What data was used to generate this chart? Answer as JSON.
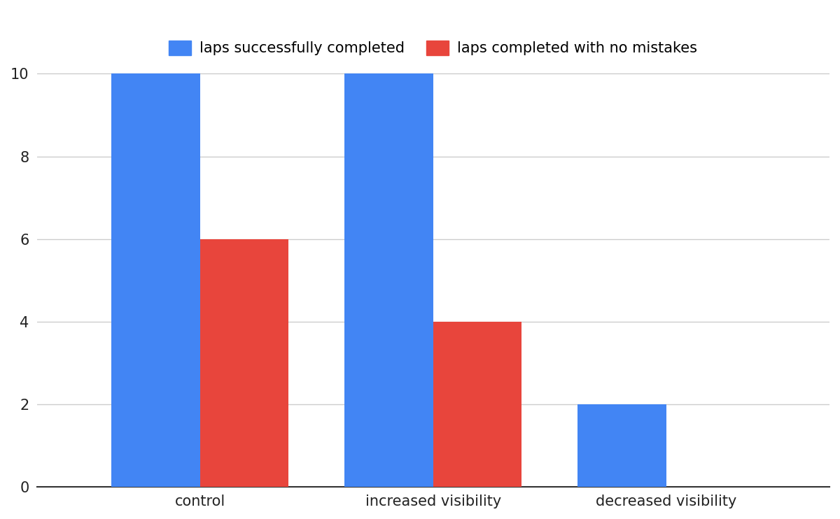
{
  "categories": [
    "control",
    "increased visibility",
    "decreased visibility"
  ],
  "series": [
    {
      "label": "laps successfully completed",
      "values": [
        10,
        10,
        2
      ],
      "color": "#4285F4"
    },
    {
      "label": "laps completed with no mistakes",
      "values": [
        6,
        4,
        0
      ],
      "color": "#E8453C"
    }
  ],
  "ylim": [
    0,
    10.5
  ],
  "yticks": [
    0,
    2,
    4,
    6,
    8,
    10
  ],
  "bar_width": 0.38,
  "background_color": "#ffffff",
  "grid_color": "#cccccc",
  "legend_fontsize": 15,
  "tick_fontsize": 15,
  "tick_color": "#222222",
  "figsize": [
    12.0,
    7.42
  ]
}
